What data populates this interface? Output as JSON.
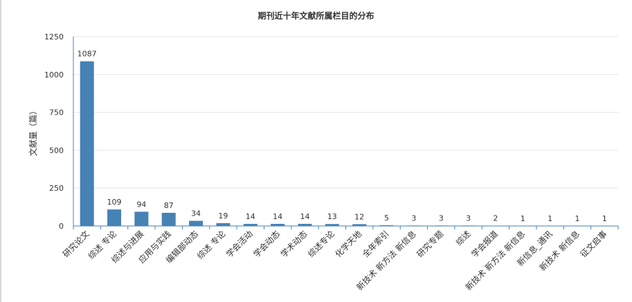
{
  "chart_data": {
    "type": "bar",
    "title": "期刊近十年文献所属栏目的分布",
    "xlabel": "",
    "ylabel": "文献量（篇）",
    "ylim": [
      0,
      1250
    ],
    "yticks": [
      0,
      250,
      500,
      750,
      1000,
      1250
    ],
    "grid": true,
    "legend": "none",
    "bar_color": "#4682b4",
    "categories": [
      "研究论文",
      "综述 专论",
      "综述与进展",
      "应用与实践",
      "编辑部动态",
      "综述 专论",
      "学会活动",
      "学会动态",
      "学术动态",
      "综述专论",
      "化学天地",
      "全年索引",
      "新技术 新方法 新信息",
      "研究专题",
      "综述",
      "学会报道",
      "新技术 新方法 新信息",
      "新信息_通讯",
      "新技术 新信息",
      "征文启事"
    ],
    "values": [
      1087,
      109,
      94,
      87,
      34,
      19,
      14,
      14,
      14,
      13,
      12,
      5,
      3,
      3,
      3,
      2,
      1,
      1,
      1,
      1
    ]
  }
}
